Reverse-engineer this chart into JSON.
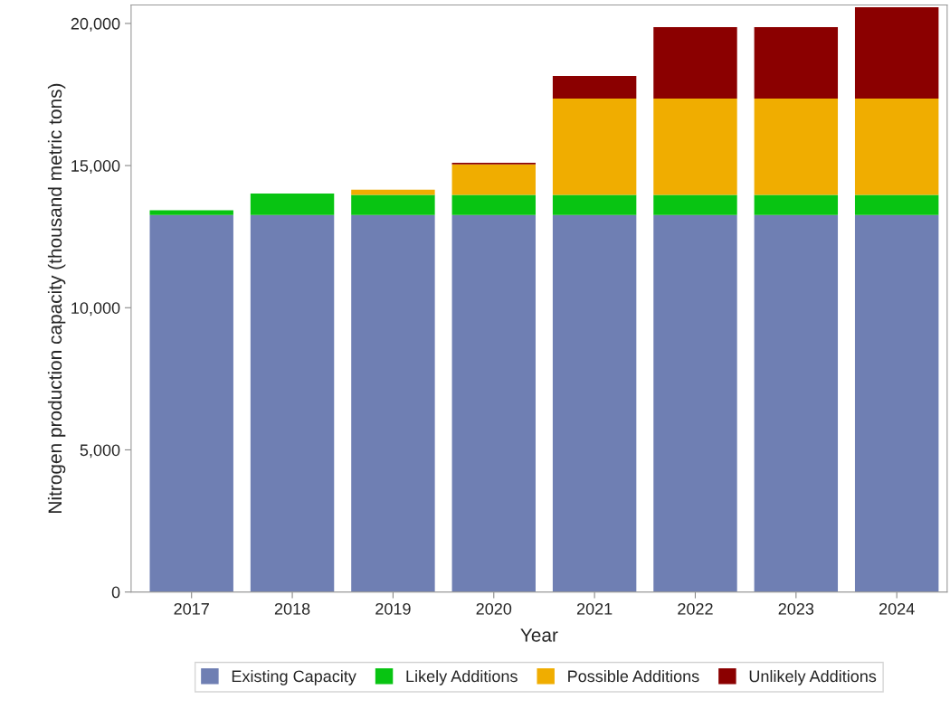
{
  "chart_data": {
    "type": "bar",
    "stacked": true,
    "xlabel": "Year",
    "ylabel": "Nitrogen production capacity (thousand metric tons)",
    "categories": [
      "2017",
      "2018",
      "2019",
      "2020",
      "2021",
      "2022",
      "2023",
      "2024"
    ],
    "series": [
      {
        "name": "Existing Capacity",
        "color": "#6f7fb3",
        "values": [
          13260,
          13260,
          13260,
          13260,
          13260,
          13260,
          13260,
          13260
        ]
      },
      {
        "name": "Likely Additions",
        "color": "#08c412",
        "values": [
          170,
          760,
          710,
          710,
          710,
          710,
          710,
          710
        ]
      },
      {
        "name": "Possible Additions",
        "color": "#f0ad00",
        "values": [
          0,
          0,
          180,
          1070,
          3390,
          3390,
          3390,
          3390
        ]
      },
      {
        "name": "Unlikely Additions",
        "color": "#8b0000",
        "values": [
          0,
          0,
          0,
          60,
          790,
          2510,
          2510,
          3210
        ]
      }
    ],
    "ylim": [
      0,
      20650
    ],
    "yticks": [
      {
        "value": 0,
        "label": "0"
      },
      {
        "value": 5000,
        "label": "5,000"
      },
      {
        "value": 10000,
        "label": "10,000"
      },
      {
        "value": 15000,
        "label": "15,000"
      },
      {
        "value": 20000,
        "label": "20,000"
      }
    ],
    "grid": false,
    "legend": "bottom"
  }
}
